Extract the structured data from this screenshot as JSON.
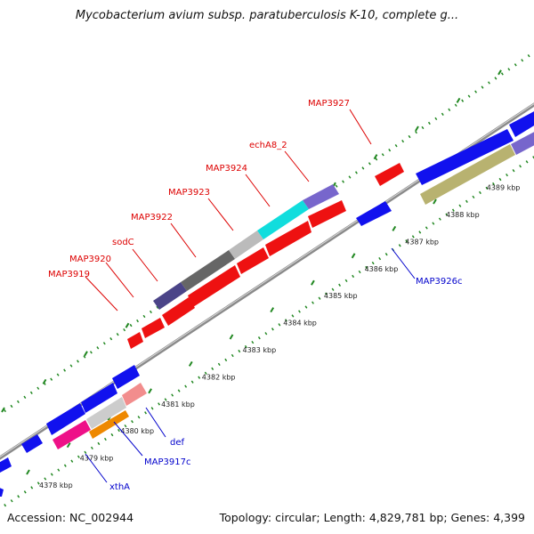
{
  "title": "Mycobacterium avium subsp. paratuberculosis K-10, complete g...",
  "footer": {
    "accession": "Accession: NC_002944",
    "stats": "Topology: circular; Length: 4,829,781 bp; Genes: 4,399"
  },
  "colors": {
    "forward_label": "#dd0000",
    "reverse_label": "#0000cc",
    "backbone": "#888888",
    "tick_dots": "#228822",
    "tick_major": "#228822"
  },
  "kbp_ticks": [
    "4378 kbp",
    "4379 kbp",
    "4380 kbp",
    "4381 kbp",
    "4382 kbp",
    "4383 kbp",
    "4384 kbp",
    "4385 kbp",
    "4386 kbp",
    "4387 kbp",
    "4388 kbp",
    "4389 kbp"
  ],
  "forward_labels": [
    "MAP3919",
    "MAP3920",
    "sodC",
    "MAP3922",
    "MAP3923",
    "MAP3924",
    "echA8_2",
    "MAP3927"
  ],
  "reverse_labels": [
    "xthA",
    "MAP3917c",
    "def",
    "MAP3926c"
  ]
}
